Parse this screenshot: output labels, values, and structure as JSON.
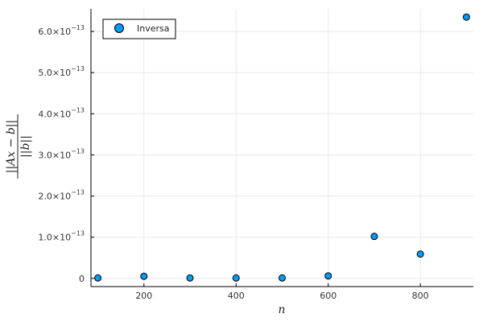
{
  "chart_data": {
    "type": "scatter",
    "xlabel": "n",
    "ylabel": "||Ax − b|| / ||b||",
    "ylabel_parts": {
      "numerator": "||Ax − b||",
      "denominator": "||b||"
    },
    "xlim": [
      85,
      915
    ],
    "ylim": [
      -2e-14,
      6.55e-13
    ],
    "grid": true,
    "legend_position": "top-left",
    "x_ticks": [
      200,
      400,
      600,
      800
    ],
    "y_ticks": [
      {
        "value": 0,
        "mantissa": "0",
        "exponent": ""
      },
      {
        "value": 1e-13,
        "mantissa": "1.0×10",
        "exponent": "−13"
      },
      {
        "value": 2e-13,
        "mantissa": "2.0×10",
        "exponent": "−13"
      },
      {
        "value": 3e-13,
        "mantissa": "3.0×10",
        "exponent": "−13"
      },
      {
        "value": 4e-13,
        "mantissa": "4.0×10",
        "exponent": "−13"
      },
      {
        "value": 5e-13,
        "mantissa": "5.0×10",
        "exponent": "−13"
      },
      {
        "value": 6e-13,
        "mantissa": "6.0×10",
        "exponent": "−13"
      }
    ],
    "series": [
      {
        "name": "Inversa",
        "color": "#009AFA",
        "x": [
          100,
          200,
          300,
          400,
          500,
          600,
          700,
          800,
          900
        ],
        "y": [
          1e-15,
          5e-15,
          1e-15,
          1e-15,
          1e-15,
          6e-15,
          1.02e-13,
          5.9e-14,
          6.35e-13
        ]
      }
    ]
  }
}
